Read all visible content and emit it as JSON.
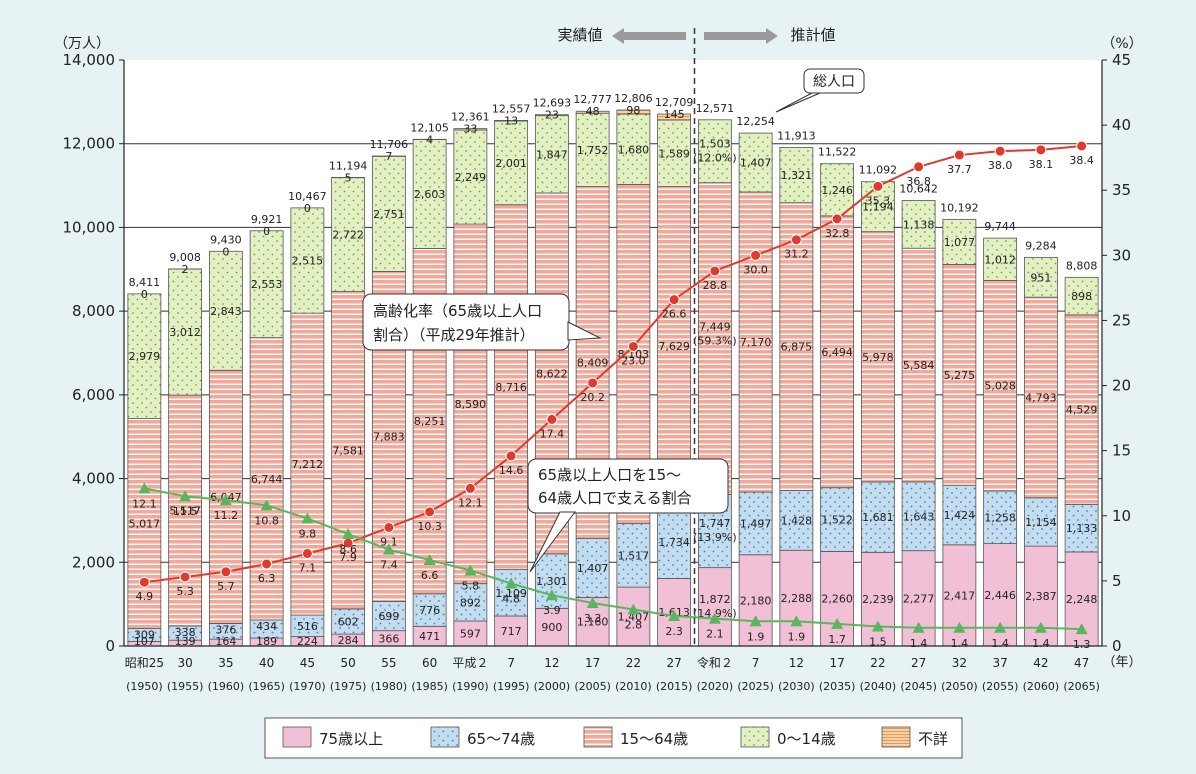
{
  "chart_data": {
    "type": "bar",
    "subtype": "stacked-bar-with-lines",
    "y_left_unit": "（万人）",
    "y_right_unit": "（%）",
    "ylim_left": [
      0,
      14000
    ],
    "ylim_right": [
      0,
      45
    ],
    "left_ticks": [
      "0",
      "2,000",
      "4,000",
      "6,000",
      "8,000",
      "10,000",
      "12,000",
      "14,000"
    ],
    "right_ticks": [
      "0",
      "5",
      "10",
      "15",
      "20",
      "25",
      "30",
      "35",
      "40",
      "45"
    ],
    "x_unit": "（年）",
    "categories_top": [
      "昭和25",
      "30",
      "35",
      "40",
      "45",
      "50",
      "55",
      "60",
      "平成２",
      "7",
      "12",
      "17",
      "22",
      "27",
      "令和２",
      "7",
      "12",
      "17",
      "22",
      "27",
      "32",
      "37",
      "42",
      "47"
    ],
    "categories_bottom": [
      "(1950)",
      "(1955)",
      "(1960)",
      "(1965)",
      "(1970)",
      "(1975)",
      "(1980)",
      "(1985)",
      "(1990)",
      "(1995)",
      "(2000)",
      "(2005)",
      "(2010)",
      "(2015)",
      "(2020)",
      "(2025)",
      "(2030)",
      "(2035)",
      "(2040)",
      "(2045)",
      "(2050)",
      "(2055)",
      "(2060)",
      "(2065)"
    ],
    "header_actual": "実績値",
    "header_projection": "推計値",
    "series": [
      {
        "name": "75歳以上",
        "color": "#f2c0d6",
        "values": [
          107,
          139,
          164,
          189,
          224,
          284,
          366,
          471,
          597,
          717,
          900,
          1160,
          1407,
          1613,
          1872,
          2180,
          2288,
          2260,
          2239,
          2277,
          2417,
          2446,
          2387,
          2248
        ],
        "labels": [
          "107",
          "139",
          "164",
          "189",
          "224",
          "284",
          "366",
          "471",
          "597",
          "717",
          "900",
          "1,160",
          "1,407",
          "1,613",
          "1,872",
          "2,180",
          "2,288",
          "2,260",
          "2,239",
          "2,277",
          "2,417",
          "2,446",
          "2,387",
          "2,248"
        ]
      },
      {
        "name": "65～74歳",
        "color": "#c2dcf0",
        "values": [
          309,
          338,
          376,
          434,
          516,
          602,
          699,
          776,
          892,
          1109,
          1301,
          1407,
          1517,
          1734,
          1747,
          1497,
          1428,
          1522,
          1681,
          1643,
          1424,
          1258,
          1154,
          1133
        ],
        "labels": [
          "309",
          "338",
          "376",
          "434",
          "516",
          "602",
          "699",
          "776",
          "892",
          "1,109",
          "1,301",
          "1,407",
          "1,517",
          "1,734",
          "1,747",
          "1,497",
          "1,428",
          "1,522",
          "1,681",
          "1,643",
          "1,424",
          "1,258",
          "1,154",
          "1,133"
        ]
      },
      {
        "name": "15～64歳",
        "color": "#f3a999",
        "values": [
          5017,
          5517,
          6047,
          6744,
          7212,
          7581,
          7883,
          8251,
          8590,
          8716,
          8622,
          8409,
          8103,
          7629,
          7449,
          7170,
          6875,
          6494,
          5978,
          5584,
          5275,
          5028,
          4793,
          4529
        ],
        "labels": [
          "5,017",
          "5,517",
          "6,047",
          "6,744",
          "7,212",
          "7,581",
          "7,883",
          "8,251",
          "8,590",
          "8,716",
          "8,622",
          "8,409",
          "8,103",
          "7,629",
          "7,449",
          "7,170",
          "6,875",
          "6,494",
          "5,978",
          "5,584",
          "5,275",
          "5,028",
          "4,793",
          "4,529"
        ]
      },
      {
        "name": "0～14歳",
        "color": "#e3f0c4",
        "values": [
          2979,
          3012,
          2843,
          2553,
          2515,
          2722,
          2751,
          2603,
          2249,
          2001,
          1847,
          1752,
          1680,
          1589,
          1503,
          1407,
          1321,
          1246,
          1194,
          1138,
          1077,
          1012,
          951,
          898
        ],
        "labels": [
          "2,979",
          "3,012",
          "2,843",
          "2,553",
          "2,515",
          "2,722",
          "2,751",
          "2,603",
          "2,249",
          "2,001",
          "1,847",
          "1,752",
          "1,680",
          "1,589",
          "1,503",
          "1,407",
          "1,321",
          "1,246",
          "1,194",
          "1,138",
          "1,077",
          "1,012",
          "951",
          "898"
        ]
      },
      {
        "name": "不詳",
        "color": "#f8d2a4",
        "values": [
          0,
          2,
          0,
          0,
          0,
          5,
          7,
          4,
          33,
          13,
          23,
          48,
          98,
          145
        ],
        "labels": [
          "0",
          "2",
          "0",
          "0",
          "0",
          "5",
          "7",
          "4",
          "33",
          "13",
          "23",
          "48",
          "98",
          "145"
        ]
      }
    ],
    "pct_2020_working": "(59.3%)",
    "pct_2020_young": "(12.0%)",
    "pct_2020_old": "(13.9%)",
    "pct_2020_elder": "(14.9%)",
    "totals": [
      8411,
      9008,
      9430,
      9921,
      10467,
      11194,
      11706,
      12105,
      12361,
      12557,
      12693,
      12777,
      12806,
      12709,
      12571,
      12254,
      11913,
      11522,
      11092,
      10642,
      10192,
      9744,
      9284,
      8808
    ],
    "total_labels": [
      "8,411",
      "9,008",
      "9,430",
      "9,921",
      "10,467",
      "11,194",
      "11,706",
      "12,105",
      "12,361",
      "12,557",
      "12,693",
      "12,777",
      "12,806",
      "12,709",
      "12,571",
      "12,254",
      "11,913",
      "11,522",
      "11,092",
      "10,642",
      "10,192",
      "9,744",
      "9,284",
      "8,808"
    ],
    "aging_rate": {
      "name": "高齢化率（65歳以上人口割合）（平成29年推計）",
      "color": "#e0392e",
      "values": [
        4.9,
        5.3,
        5.7,
        6.3,
        7.1,
        7.9,
        9.1,
        10.3,
        12.1,
        14.6,
        17.4,
        20.2,
        23.0,
        26.6,
        28.8,
        30.0,
        31.2,
        32.8,
        35.3,
        36.8,
        37.7,
        38.0,
        38.1,
        38.4
      ],
      "labels": [
        "4.9",
        "5.3",
        "5.7",
        "6.3",
        "7.1",
        "7.9",
        "9.1",
        "10.3",
        "12.1",
        "14.6",
        "17.4",
        "20.2",
        "23.0",
        "26.6",
        "28.8",
        "30.0",
        "31.2",
        "32.8",
        "35.3",
        "36.8",
        "37.7",
        "38.0",
        "38.1",
        "38.4"
      ]
    },
    "support_ratio": {
      "name": "65歳以上人口を15～64歳人口で支える割合",
      "color": "#5ab65e",
      "values": [
        12.1,
        11.5,
        11.2,
        10.8,
        9.8,
        8.6,
        7.4,
        6.6,
        5.8,
        4.8,
        3.9,
        3.3,
        2.8,
        2.3,
        2.1,
        1.9,
        1.9,
        1.7,
        1.5,
        1.4,
        1.4,
        1.4,
        1.4,
        1.3
      ],
      "labels": [
        "12.1",
        "11.5",
        "11.2",
        "10.8",
        "9.8",
        "8.6",
        "7.4",
        "6.6",
        "5.8",
        "4.8",
        "3.9",
        "3.3",
        "2.8",
        "2.3",
        "2.1",
        "1.9",
        "1.9",
        "1.7",
        "1.5",
        "1.4",
        "1.4",
        "1.4",
        "1.4",
        "1.3"
      ]
    },
    "callouts": {
      "total": "総人口",
      "aging_line1": "高齢化率（65歳以上人口",
      "aging_line2": "割合）（平成29年推計）",
      "support_line1": "65歳以上人口を15～",
      "support_line2": "64歳人口で支える割合"
    },
    "legend": [
      "75歳以上",
      "65～74歳",
      "15～64歳",
      "0～14歳",
      "不詳"
    ],
    "legend_position": "bottom"
  }
}
